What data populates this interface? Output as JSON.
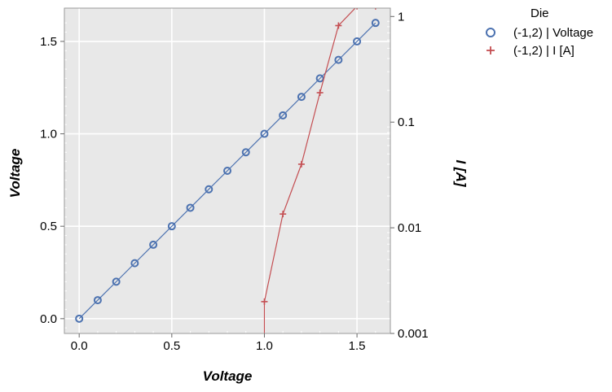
{
  "chart_data": {
    "type": "line",
    "xlabel": "Voltage",
    "ylabel": "Voltage",
    "y2label": "I [A]",
    "xlim": [
      -0.08,
      1.68
    ],
    "ylim": [
      -0.08,
      1.68
    ],
    "y2lim": [
      0.001,
      1.2
    ],
    "y2scale": "log",
    "grid": true,
    "legend_position": "top-right outside",
    "xticks": [
      0.0,
      0.5,
      1.0,
      1.5
    ],
    "xtick_labels": [
      "0.0",
      "0.5",
      "1.0",
      "1.5"
    ],
    "yticks": [
      0.0,
      0.5,
      1.0,
      1.5
    ],
    "ytick_labels": [
      "0.0",
      "0.5",
      "1.0",
      "1.5"
    ],
    "y2ticks": [
      0.001,
      0.01,
      0.1,
      1
    ],
    "y2tick_labels": [
      "0.001",
      "0.01",
      "0.1",
      "1"
    ],
    "legend_title": "Die",
    "series": [
      {
        "name": "(-1,2) | Voltage",
        "axis": "left",
        "marker": "circle",
        "color": "#4c72b0",
        "x": [
          0.0,
          0.1,
          0.2,
          0.3,
          0.4,
          0.5,
          0.6,
          0.7,
          0.8,
          0.9,
          1.0,
          1.1,
          1.2,
          1.3,
          1.4,
          1.5,
          1.6
        ],
        "y": [
          0.0,
          0.1,
          0.2,
          0.3,
          0.4,
          0.5,
          0.6,
          0.7,
          0.8,
          0.9,
          1.0,
          1.1,
          1.2,
          1.3,
          1.4,
          1.5,
          1.6
        ]
      },
      {
        "name": "(-1,2) | I [A]",
        "axis": "right",
        "marker": "plus",
        "color": "#c44e52",
        "x": [
          1.0,
          1.1,
          1.2,
          1.3,
          1.4,
          1.5,
          1.6
        ],
        "y": [
          0.002,
          0.0135,
          0.04,
          0.19,
          0.82,
          1.25,
          1.25
        ]
      }
    ]
  }
}
